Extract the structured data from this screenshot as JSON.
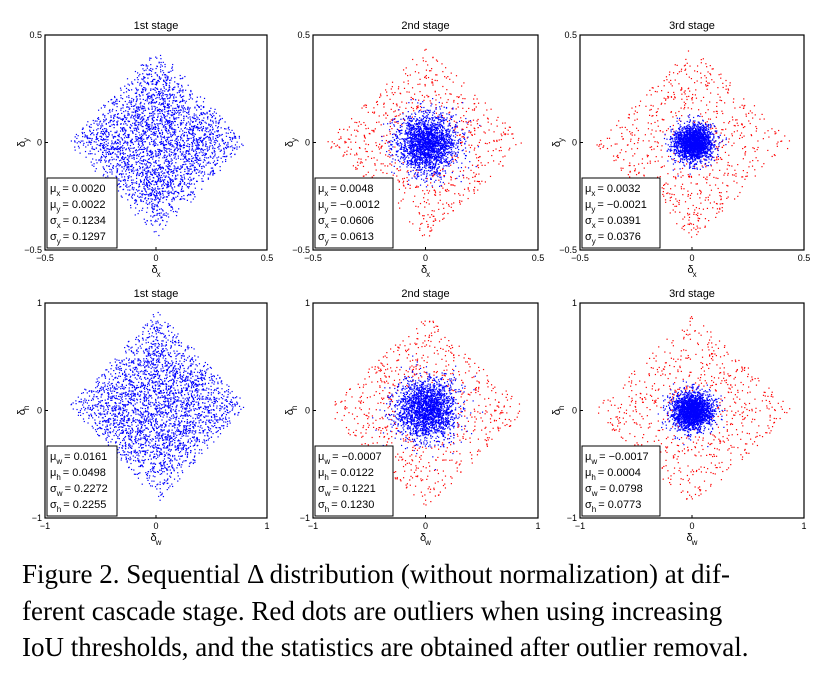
{
  "chart_data": [
    {
      "type": "scatter",
      "row": "top",
      "title": "1st stage",
      "xlabel": "δ",
      "xlabel_sub": "x",
      "ylabel": "δ",
      "ylabel_sub": "y",
      "xlim": [
        -0.5,
        0.5
      ],
      "ylim": [
        -0.5,
        0.5
      ],
      "xticks": [
        "−0.5",
        "0",
        "0.5"
      ],
      "yticks": [
        "−0.5",
        "0",
        "0.5"
      ],
      "grid": false,
      "inlier_color": "#0000ff",
      "outlier_color": "#ff0000",
      "has_outliers": false,
      "stats": [
        {
          "sym": "μ",
          "sub": "x",
          "value": "= 0.0020"
        },
        {
          "sym": "μ",
          "sub": "y",
          "value": "= 0.0022"
        },
        {
          "sym": "σ",
          "sub": "x",
          "value": "= 0.1234"
        },
        {
          "sym": "σ",
          "sub": "y",
          "value": "= 0.1297"
        }
      ],
      "mu": [
        0.002,
        0.0022
      ],
      "sigma": [
        0.1234,
        0.1297
      ]
    },
    {
      "type": "scatter",
      "row": "top",
      "title": "2nd stage",
      "xlabel": "δ",
      "xlabel_sub": "x",
      "ylabel": "δ",
      "ylabel_sub": "y",
      "xlim": [
        -0.5,
        0.5
      ],
      "ylim": [
        -0.5,
        0.5
      ],
      "xticks": [
        "−0.5",
        "0",
        "0.5"
      ],
      "yticks": [
        "−0.5",
        "0",
        "0.5"
      ],
      "grid": false,
      "inlier_color": "#0000ff",
      "outlier_color": "#ff0000",
      "has_outliers": true,
      "stats": [
        {
          "sym": "μ",
          "sub": "x",
          "value": "= 0.0048"
        },
        {
          "sym": "μ",
          "sub": "y",
          "value": "= −0.0012"
        },
        {
          "sym": "σ",
          "sub": "x",
          "value": "= 0.0606"
        },
        {
          "sym": "σ",
          "sub": "y",
          "value": "= 0.0613"
        }
      ],
      "mu": [
        0.0048,
        -0.0012
      ],
      "sigma": [
        0.0606,
        0.0613
      ]
    },
    {
      "type": "scatter",
      "row": "top",
      "title": "3rd stage",
      "xlabel": "δ",
      "xlabel_sub": "x",
      "ylabel": "δ",
      "ylabel_sub": "y",
      "xlim": [
        -0.5,
        0.5
      ],
      "ylim": [
        -0.5,
        0.5
      ],
      "xticks": [
        "−0.5",
        "0",
        "0.5"
      ],
      "yticks": [
        "−0.5",
        "0",
        "0.5"
      ],
      "grid": false,
      "inlier_color": "#0000ff",
      "outlier_color": "#ff0000",
      "has_outliers": true,
      "stats": [
        {
          "sym": "μ",
          "sub": "x",
          "value": "= 0.0032"
        },
        {
          "sym": "μ",
          "sub": "y",
          "value": "= −0.0021"
        },
        {
          "sym": "σ",
          "sub": "x",
          "value": "= 0.0391"
        },
        {
          "sym": "σ",
          "sub": "y",
          "value": "= 0.0376"
        }
      ],
      "mu": [
        0.0032,
        -0.0021
      ],
      "sigma": [
        0.0391,
        0.0376
      ]
    },
    {
      "type": "scatter",
      "row": "bottom",
      "title": "1st stage",
      "xlabel": "δ",
      "xlabel_sub": "w",
      "ylabel": "δ",
      "ylabel_sub": "h",
      "xlim": [
        -1,
        1
      ],
      "ylim": [
        -1,
        1
      ],
      "xticks": [
        "−1",
        "0",
        "1"
      ],
      "yticks": [
        "−1",
        "0",
        "1"
      ],
      "grid": false,
      "inlier_color": "#0000ff",
      "outlier_color": "#ff0000",
      "has_outliers": false,
      "stats": [
        {
          "sym": "μ",
          "sub": "w",
          "value": "= 0.0161"
        },
        {
          "sym": "μ",
          "sub": "h",
          "value": "= 0.0498"
        },
        {
          "sym": "σ",
          "sub": "w",
          "value": "= 0.2272"
        },
        {
          "sym": "σ",
          "sub": "h",
          "value": "= 0.2255"
        }
      ],
      "mu": [
        0.0161,
        0.0498
      ],
      "sigma": [
        0.2272,
        0.2255
      ]
    },
    {
      "type": "scatter",
      "row": "bottom",
      "title": "2nd stage",
      "xlabel": "δ",
      "xlabel_sub": "w",
      "ylabel": "δ",
      "ylabel_sub": "h",
      "xlim": [
        -1,
        1
      ],
      "ylim": [
        -1,
        1
      ],
      "xticks": [
        "−1",
        "0",
        "1"
      ],
      "yticks": [
        "−1",
        "0",
        "1"
      ],
      "grid": false,
      "inlier_color": "#0000ff",
      "outlier_color": "#ff0000",
      "has_outliers": true,
      "stats": [
        {
          "sym": "μ",
          "sub": "w",
          "value": "= −0.0007"
        },
        {
          "sym": "μ",
          "sub": "h",
          "value": "= 0.0122"
        },
        {
          "sym": "σ",
          "sub": "w",
          "value": "= 0.1221"
        },
        {
          "sym": "σ",
          "sub": "h",
          "value": "= 0.1230"
        }
      ],
      "mu": [
        -0.0007,
        0.0122
      ],
      "sigma": [
        0.1221,
        0.123
      ]
    },
    {
      "type": "scatter",
      "row": "bottom",
      "title": "3rd stage",
      "xlabel": "δ",
      "xlabel_sub": "w",
      "ylabel": "δ",
      "ylabel_sub": "h",
      "xlim": [
        -1,
        1
      ],
      "ylim": [
        -1,
        1
      ],
      "xticks": [
        "−1",
        "0",
        "1"
      ],
      "yticks": [
        "−1",
        "0",
        "1"
      ],
      "grid": false,
      "inlier_color": "#0000ff",
      "outlier_color": "#ff0000",
      "has_outliers": true,
      "stats": [
        {
          "sym": "μ",
          "sub": "w",
          "value": "= −0.0017"
        },
        {
          "sym": "μ",
          "sub": "h",
          "value": "= 0.0004"
        },
        {
          "sym": "σ",
          "sub": "w",
          "value": "= 0.0798"
        },
        {
          "sym": "σ",
          "sub": "h",
          "value": "= 0.0773"
        }
      ],
      "mu": [
        -0.0017,
        0.0004
      ],
      "sigma": [
        0.0798,
        0.0773
      ]
    }
  ],
  "caption": {
    "lines": [
      "Figure 2. Sequential Δ distribution (without normalization) at dif-",
      "ferent cascade stage. Red dots are outliers when using increasing",
      "IoU thresholds, and the statistics are obtained after outlier removal."
    ]
  }
}
